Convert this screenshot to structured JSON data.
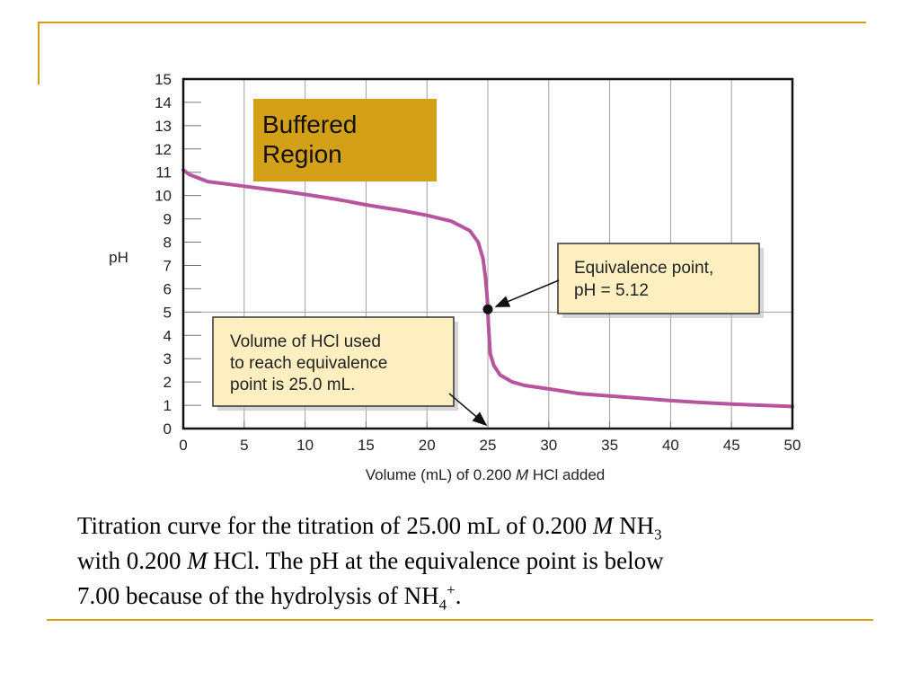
{
  "chart_data": {
    "type": "line",
    "xlabel_parts": [
      "Volume (mL) of 0.200 ",
      "M",
      " HCl added"
    ],
    "ylabel": "pH",
    "xlim": [
      0,
      50
    ],
    "ylim": [
      0,
      15
    ],
    "x_ticks": [
      0,
      5,
      10,
      15,
      20,
      25,
      30,
      35,
      40,
      45,
      50
    ],
    "y_ticks": [
      0,
      1,
      2,
      3,
      4,
      5,
      6,
      7,
      8,
      9,
      10,
      11,
      12,
      13,
      14,
      15
    ],
    "grid": "vertical lines every 5 mL, horizontal line at pH 5",
    "series": [
      {
        "color": "#b8549e",
        "x": [
          0,
          0.5,
          2,
          5,
          8,
          10,
          12.5,
          15,
          18,
          20,
          22,
          23.5,
          24.2,
          24.6,
          24.8,
          24.95,
          25,
          25.05,
          25.2,
          25.5,
          26,
          27,
          28,
          30,
          32.5,
          35,
          37.5,
          40,
          42.5,
          45,
          47.5,
          50
        ],
        "y": [
          11.1,
          10.9,
          10.6,
          10.4,
          10.2,
          10.05,
          9.85,
          9.6,
          9.35,
          9.15,
          8.9,
          8.5,
          8.0,
          7.3,
          6.5,
          5.6,
          5.12,
          4.4,
          3.2,
          2.7,
          2.3,
          2.0,
          1.85,
          1.7,
          1.5,
          1.4,
          1.3,
          1.2,
          1.12,
          1.05,
          1.0,
          0.95
        ]
      }
    ],
    "equivalence_point": {
      "x": 25,
      "y": 5.12
    },
    "annotations": [
      {
        "id": "buffered",
        "lines": [
          "Buffered",
          "Region"
        ],
        "fill": "#d4a017"
      },
      {
        "id": "equivalence",
        "lines": [
          "Equivalence point,",
          "pH = 5.12"
        ],
        "fill": "#fdefc0",
        "points_to": {
          "x": 25,
          "y": 5.12
        }
      },
      {
        "id": "volume",
        "lines": [
          "Volume of HCl used",
          "to reach equivalence",
          "point is 25.0 mL."
        ],
        "fill": "#fdefc0",
        "points_to": {
          "x": 25,
          "y": 0
        }
      }
    ]
  },
  "caption": {
    "line1": {
      "a": "Titration curve for the titration of 25.00 mL of 0.200 ",
      "m": "M",
      "b": " NH",
      "sub": "3"
    },
    "line2": {
      "a": "with 0.200 ",
      "m": "M",
      "b": " HCl. The pH at the equivalence point is below"
    },
    "line3": {
      "a": "7.00 because of the hydrolysis of NH",
      "sub": "4",
      "sup": "+",
      "b": "."
    }
  },
  "colors": {
    "accent": "#d4a017",
    "curve": "#b8549e",
    "grid": "#a0a0a0"
  }
}
